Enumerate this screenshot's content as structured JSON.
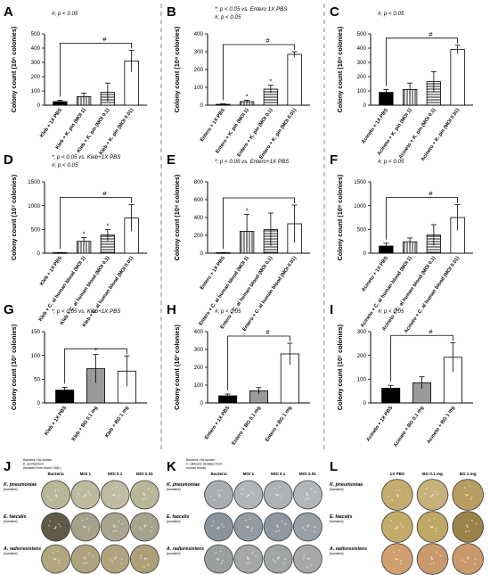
{
  "figure": {
    "panels": [
      "A",
      "B",
      "C",
      "D",
      "E",
      "F",
      "G",
      "H",
      "I"
    ],
    "plate_panels": [
      "J",
      "K",
      "L"
    ]
  },
  "chart_data": [
    {
      "panel": "A",
      "type": "bar",
      "ylabel": "Colony count (10⁶ colonies)",
      "ylim": [
        0,
        500
      ],
      "yticks": [
        0,
        100,
        200,
        300,
        400,
        500
      ],
      "categories": [
        "Kleb + 1X PBS",
        "Kleb + K. pin (MOI 1)",
        "Kleb + K. pin (MOI 0.1)",
        "Kleb + K. pin (MOI 0.01)"
      ],
      "values": [
        25,
        60,
        90,
        310
      ],
      "errors": [
        10,
        25,
        65,
        75
      ],
      "fills": [
        "black",
        "vstripe",
        "hstripe",
        "white"
      ],
      "annotations": [
        "#; p < 0.05"
      ],
      "sig_marks": [
        "#"
      ]
    },
    {
      "panel": "B",
      "type": "bar",
      "ylabel": "Colony count (10⁸ colonies)",
      "ylim": [
        0,
        400
      ],
      "yticks": [
        0,
        100,
        200,
        300,
        400
      ],
      "categories": [
        "Entero + 1X PBS",
        "Entero + K. pin (MOI 1)",
        "Entero + K. pin (MOI 0.1)",
        "Entero + K. pin (MOI 0.01)"
      ],
      "values": [
        5,
        20,
        90,
        285
      ],
      "errors": [
        3,
        8,
        22,
        15
      ],
      "fills": [
        "black",
        "vstripe",
        "hstripe",
        "white"
      ],
      "annotations": [
        "*; p < 0.05 vs. Entero 1X PBS",
        "#; p < 0.05"
      ],
      "sig_marks": [
        "*",
        "*",
        "#"
      ]
    },
    {
      "panel": "C",
      "type": "bar",
      "ylabel": "Colony count (10⁸ colonies)",
      "ylim": [
        0,
        500
      ],
      "yticks": [
        0,
        100,
        200,
        300,
        400,
        500
      ],
      "categories": [
        "Acineto + 1X PBS",
        "Acineto + K. pin (MOI 1)",
        "Acineto + K. pin (MOI 0.1)",
        "Acineto + K. pin (MOI 0.01)"
      ],
      "values": [
        90,
        110,
        165,
        390
      ],
      "errors": [
        20,
        45,
        70,
        30
      ],
      "fills": [
        "black",
        "vstripe",
        "hstripe",
        "white"
      ],
      "annotations": [
        "#; p < 0.05"
      ],
      "sig_marks": [
        "#"
      ]
    },
    {
      "panel": "D",
      "type": "bar",
      "ylabel": "Colony count (10⁷ colonies)",
      "ylim": [
        0,
        1500
      ],
      "yticks": [
        0,
        500,
        1000,
        1500
      ],
      "categories": [
        "Kleb + 1X PBS",
        "Kleb + C. al human blood (MOI 1)",
        "Kleb + C. al human blood (MOI 0.1)",
        "Kleb + C. al human blood (MOI 0.01)"
      ],
      "values": [
        10,
        250,
        380,
        740
      ],
      "errors": [
        5,
        80,
        120,
        280
      ],
      "fills": [
        "black",
        "vstripe",
        "hstripe",
        "white"
      ],
      "annotations": [
        "*; p < 0.05 vs. Kleb+1X PBS",
        "#; p < 0.05"
      ],
      "sig_marks": [
        "*",
        "*",
        "#"
      ]
    },
    {
      "panel": "E",
      "type": "bar",
      "ylabel": "Colony count (10⁸ colonies)",
      "ylim": [
        0,
        800
      ],
      "yticks": [
        0,
        200,
        400,
        600,
        800
      ],
      "categories": [
        "Entero + 1X PBS",
        "Entero + C. al human blood (MOI 1)",
        "Entero + C. al human blood (MOI 0.1)",
        "Entero + C. al human blood (MOI 0.01)"
      ],
      "values": [
        5,
        245,
        265,
        330
      ],
      "errors": [
        3,
        190,
        185,
        210
      ],
      "fills": [
        "black",
        "vstripe",
        "hstripe",
        "white"
      ],
      "annotations": [
        "*; p < 0.05 vs. Entero+1X PBS"
      ],
      "sig_marks": [
        "*"
      ]
    },
    {
      "panel": "F",
      "type": "bar",
      "ylabel": "Colony count (10⁸ colonies)",
      "ylim": [
        0,
        1500
      ],
      "yticks": [
        0,
        500,
        1000,
        1500
      ],
      "categories": [
        "Acineto + 1X PBS",
        "Acineto + C. al human blood (MOI 1)",
        "Acineto + C. al human blood (MOI 0.1)",
        "Acineto + C. al human blood (MOI 0.01)"
      ],
      "values": [
        150,
        240,
        380,
        750
      ],
      "errors": [
        60,
        80,
        220,
        270
      ],
      "fills": [
        "black",
        "vstripe",
        "hstripe",
        "white"
      ],
      "annotations": [
        "#; p < 0.05"
      ],
      "sig_marks": [
        "#"
      ]
    },
    {
      "panel": "G",
      "type": "bar",
      "ylabel": "Colony count (10⁷ colonies)",
      "ylim": [
        0,
        150
      ],
      "yticks": [
        0,
        50,
        100,
        150
      ],
      "categories": [
        "Kleb + 1X PBS",
        "Kleb + BG 0.1 mg",
        "Kleb + BG 1 mg"
      ],
      "values": [
        27,
        72,
        67
      ],
      "errors": [
        6,
        30,
        32
      ],
      "fills": [
        "black",
        "gray",
        "white"
      ],
      "annotations": [
        "*; p < 0.05 vs. Kleb+1X PBS"
      ],
      "sig_marks": [
        "*"
      ]
    },
    {
      "panel": "H",
      "type": "bar",
      "ylabel": "Colony count (10³ colonies)",
      "ylim": [
        0,
        400
      ],
      "yticks": [
        0,
        100,
        200,
        300,
        400
      ],
      "categories": [
        "Entero + 1X PBS",
        "Entero + BG 0.1 mg",
        "Entero + BG 1 mg"
      ],
      "values": [
        40,
        68,
        275
      ],
      "errors": [
        10,
        18,
        60
      ],
      "fills": [
        "black",
        "gray",
        "white"
      ],
      "annotations": [
        "#; p < 0.05"
      ],
      "sig_marks": [
        "#"
      ]
    },
    {
      "panel": "I",
      "type": "bar",
      "ylabel": "Colony count (10⁷ colonies)",
      "ylim": [
        0,
        300
      ],
      "yticks": [
        0,
        100,
        200,
        300
      ],
      "categories": [
        "Acineto + 1X PBS",
        "Acinato + BG 0.1 mg",
        "Acineto + BG 1 mg"
      ],
      "values": [
        62,
        85,
        192
      ],
      "errors": [
        12,
        25,
        62
      ],
      "fills": [
        "black",
        "gray",
        "white"
      ],
      "annotations": [
        "#; p < 0.05"
      ],
      "sig_marks": [
        "#"
      ]
    }
  ],
  "plates": [
    {
      "panel": "J",
      "corner_note": [
        "Bacteria: HA-Isolate",
        "K. pinnipedum",
        "(isolated from blood / BAL)"
      ],
      "columns": [
        "Bacteria",
        "MOI 1",
        "MOI 0.1",
        "MOI 0.01"
      ],
      "rows": [
        {
          "label": "K. pneumoniae",
          "sub": "(isolated)",
          "colors": [
            "#b9b79a",
            "#bdb99e",
            "#bfbba0",
            "#b9b697"
          ]
        },
        {
          "label": "E. faecalis",
          "sub": "(isolated)",
          "colors": [
            "#5e5a46",
            "#a5a18a",
            "#a9a58e",
            "#a7a48d"
          ]
        },
        {
          "label": "A. radioresistens",
          "sub": "(isolated)",
          "colors": [
            "#b3a77f",
            "#aea37e",
            "#b0a57f",
            "#ad9f78"
          ]
        }
      ]
    },
    {
      "panel": "K",
      "corner_note": [
        "Bacteria: HA-Isolate",
        "C. albicans (isolated from",
        "human blood)"
      ],
      "columns": [
        "Bacteria",
        "MOI 1",
        "MOI 0.1",
        "MOI 0.01"
      ],
      "rows": [
        {
          "label": "K. pneumoniae",
          "sub": "(isolated)",
          "colors": [
            "#a9adb1",
            "#b1b5b8",
            "#aeb2b5",
            "#b3b6b8"
          ]
        },
        {
          "label": "E. faecalis",
          "sub": "(isolated)",
          "colors": [
            "#8a949c",
            "#939ca3",
            "#8f98a0",
            "#97a0a7"
          ]
        },
        {
          "label": "A. radioresistens",
          "sub": "(isolated)",
          "colors": [
            "#9b9f9c",
            "#a5a8a5",
            "#a2a6a3",
            "#a6a9a6"
          ]
        }
      ]
    },
    {
      "panel": "L",
      "corner_note": [],
      "columns": [
        "1X PBS",
        "BG 0.1 mg",
        "BG 1 mg"
      ],
      "rows": [
        {
          "label": "K. pneumoniae",
          "sub": "(isolated)",
          "colors": [
            "#c5ab6d",
            "#c7b07a",
            "#b89c62"
          ]
        },
        {
          "label": "E. faecalis",
          "sub": "(isolated)",
          "colors": [
            "#c3ac6a",
            "#bfa766",
            "#9b8248"
          ]
        },
        {
          "label": "A. radioresistens",
          "sub": "(isolated)",
          "colors": [
            "#cf9f6f",
            "#c99a6c",
            "#c8996a"
          ]
        }
      ]
    }
  ]
}
